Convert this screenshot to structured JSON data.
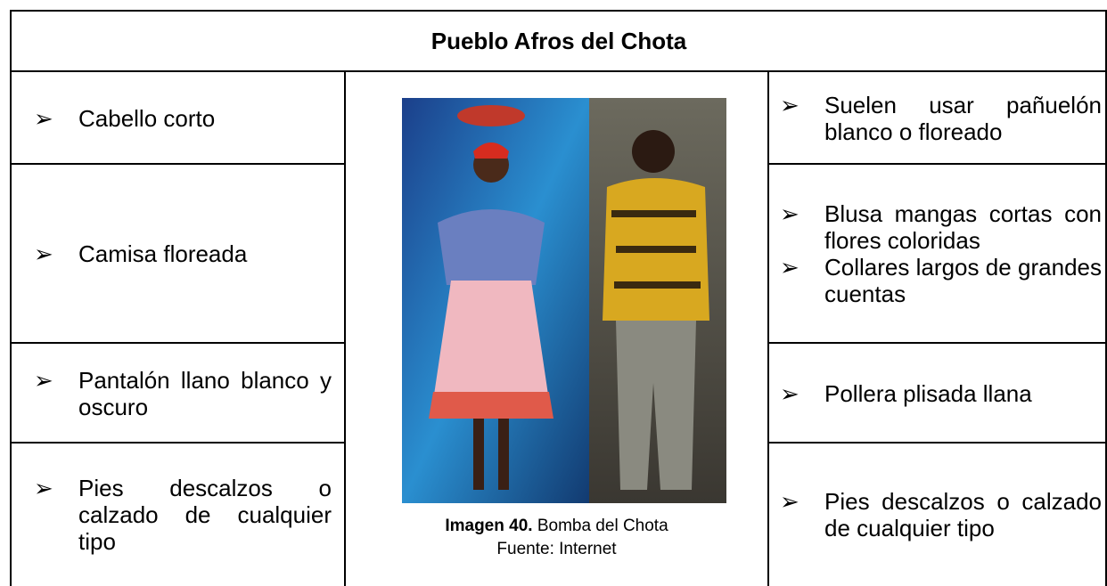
{
  "title": "Pueblo Afros del Chota",
  "rows": [
    {
      "left": [
        "Cabello corto"
      ],
      "right": [
        "Suelen usar pañuelón blanco o floreado"
      ]
    },
    {
      "left": [
        "Camisa floreada"
      ],
      "right": [
        "Blusa mangas cortas con flores coloridas",
        "Collares largos de grandes cuentas"
      ]
    },
    {
      "left": [
        "Pantalón llano blanco y oscuro"
      ],
      "right": [
        "Pollera plisada llana"
      ]
    },
    {
      "left": [
        "Pies descalzos o calzado de cualquier tipo"
      ],
      "right": [
        "Pies descalzos o calzado de cualquier tipo"
      ]
    }
  ],
  "image": {
    "caption_label": "Imagen 40.",
    "caption_text": "Bomba del Chota",
    "source": "Fuente: Internet"
  }
}
